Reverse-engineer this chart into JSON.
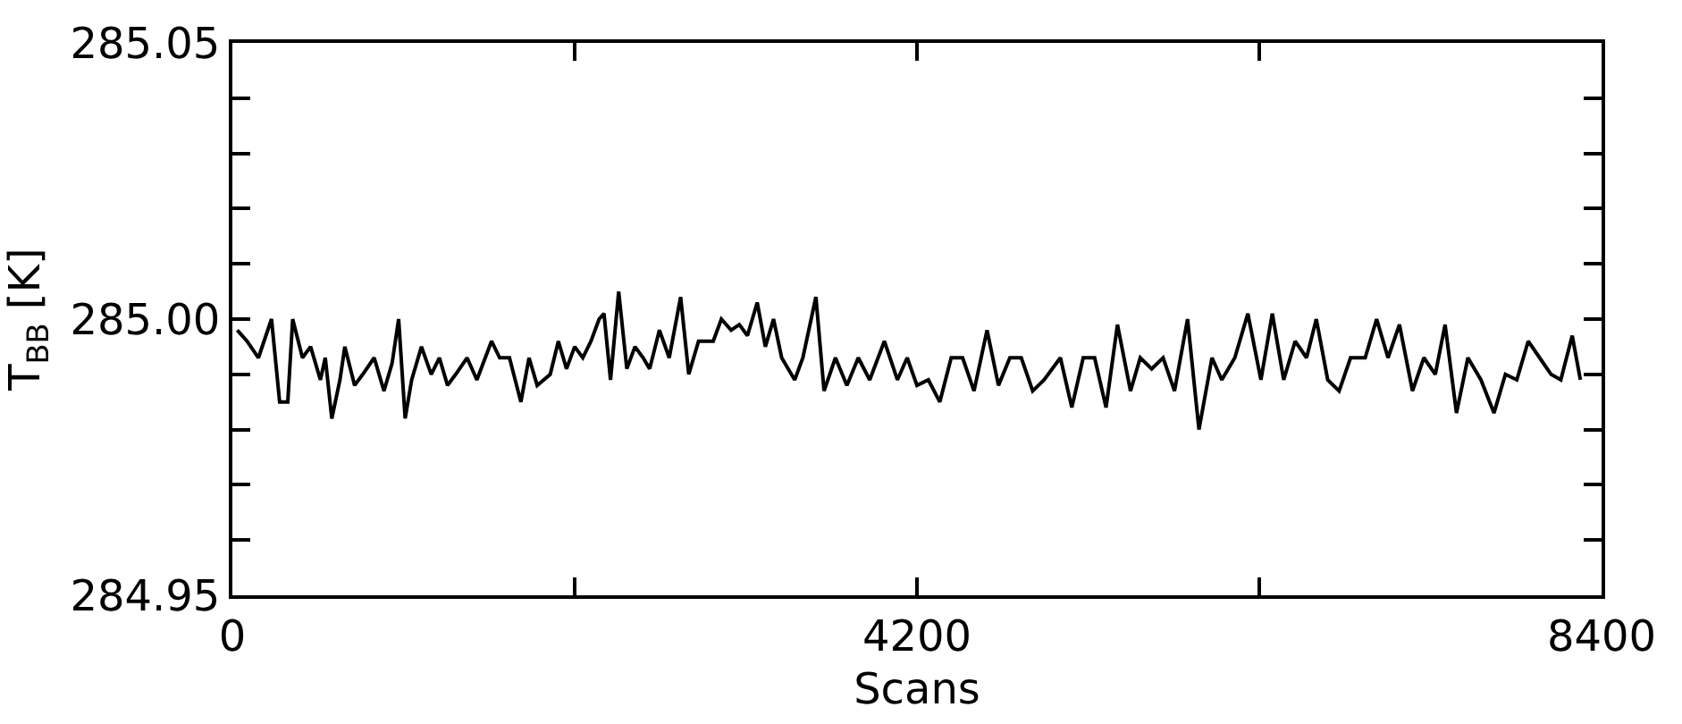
{
  "chart_data": {
    "type": "line",
    "xlabel": "Scans",
    "ylabel": "T$_{BB}$ [K]",
    "xlim": [
      0,
      8400
    ],
    "xticks": [
      0,
      {
        "value": 2100,
        "label": null
      },
      4200,
      {
        "value": 6300,
        "label": null
      },
      8400
    ],
    "ylim": [
      284.95,
      285.05
    ],
    "yticks": [
      {
        "value": 284.95,
        "label": "284.95"
      },
      {
        "value": 284.96,
        "label": null
      },
      {
        "value": 284.97,
        "label": null
      },
      {
        "value": 284.98,
        "label": null
      },
      {
        "value": 284.99,
        "label": null
      },
      {
        "value": 285.0,
        "label": "285.00"
      },
      {
        "value": 285.01,
        "label": null
      },
      {
        "value": 285.02,
        "label": null
      },
      {
        "value": 285.03,
        "label": null
      },
      {
        "value": 285.04,
        "label": null
      },
      {
        "value": 285.05,
        "label": "285.05"
      }
    ],
    "marker": "none",
    "line_style": "solid",
    "series": [
      {
        "color": "#000000",
        "x": [
          30,
          90,
          160,
          240,
          290,
          340,
          370,
          430,
          480,
          540,
          570,
          610,
          660,
          690,
          750,
          800,
          870,
          930,
          980,
          1020,
          1060,
          1100,
          1160,
          1220,
          1270,
          1320,
          1370,
          1440,
          1500,
          1590,
          1640,
          1700,
          1770,
          1820,
          1870,
          1950,
          2000,
          2050,
          2100,
          2150,
          2200,
          2250,
          2280,
          2320,
          2370,
          2420,
          2470,
          2520,
          2560,
          2620,
          2680,
          2750,
          2800,
          2860,
          2950,
          3000,
          3060,
          3110,
          3160,
          3220,
          3270,
          3320,
          3370,
          3450,
          3500,
          3580,
          3630,
          3700,
          3770,
          3840,
          3910,
          4000,
          4080,
          4140,
          4200,
          4270,
          4340,
          4410,
          4480,
          4550,
          4630,
          4700,
          4770,
          4840,
          4910,
          4980,
          5080,
          5150,
          5220,
          5290,
          5360,
          5430,
          5510,
          5570,
          5640,
          5710,
          5780,
          5860,
          5930,
          6010,
          6070,
          6150,
          6230,
          6310,
          6380,
          6450,
          6520,
          6590,
          6650,
          6720,
          6790,
          6860,
          6950,
          7020,
          7090,
          7160,
          7240,
          7310,
          7380,
          7440,
          7510,
          7580,
          7660,
          7740,
          7810,
          7880,
          7950,
          8020,
          8090,
          8150,
          8220,
          8270
        ],
        "values": [
          284.998,
          284.996,
          284.993,
          285.0,
          284.985,
          284.985,
          285.0,
          284.993,
          284.995,
          284.989,
          284.993,
          284.982,
          284.989,
          284.995,
          284.988,
          284.99,
          284.993,
          284.987,
          284.992,
          285.0,
          284.982,
          284.989,
          284.995,
          284.99,
          284.993,
          284.988,
          284.99,
          284.993,
          284.989,
          284.996,
          284.993,
          284.993,
          284.985,
          284.993,
          284.988,
          284.99,
          284.996,
          284.991,
          284.995,
          284.993,
          284.996,
          285.0,
          285.001,
          284.989,
          285.005,
          284.991,
          284.995,
          284.993,
          284.991,
          284.998,
          284.993,
          285.004,
          284.99,
          284.996,
          284.996,
          285.0,
          284.998,
          284.999,
          284.997,
          285.003,
          284.995,
          285.0,
          284.993,
          284.989,
          284.993,
          285.004,
          284.987,
          284.993,
          284.988,
          284.993,
          284.989,
          284.996,
          284.989,
          284.993,
          284.988,
          284.989,
          284.985,
          284.993,
          284.993,
          284.987,
          284.998,
          284.988,
          284.993,
          284.993,
          284.987,
          284.989,
          284.993,
          284.984,
          284.993,
          284.993,
          284.984,
          284.999,
          284.987,
          284.993,
          284.991,
          284.993,
          284.987,
          285.0,
          284.98,
          284.993,
          284.989,
          284.993,
          285.001,
          284.989,
          285.001,
          284.989,
          284.996,
          284.993,
          285.0,
          284.989,
          284.987,
          284.993,
          284.993,
          285.0,
          284.993,
          284.999,
          284.987,
          284.993,
          284.99,
          284.999,
          284.983,
          284.993,
          284.989,
          284.983,
          284.99,
          284.989,
          284.996,
          284.993,
          284.99,
          284.989,
          284.997,
          284.989
        ]
      }
    ]
  }
}
